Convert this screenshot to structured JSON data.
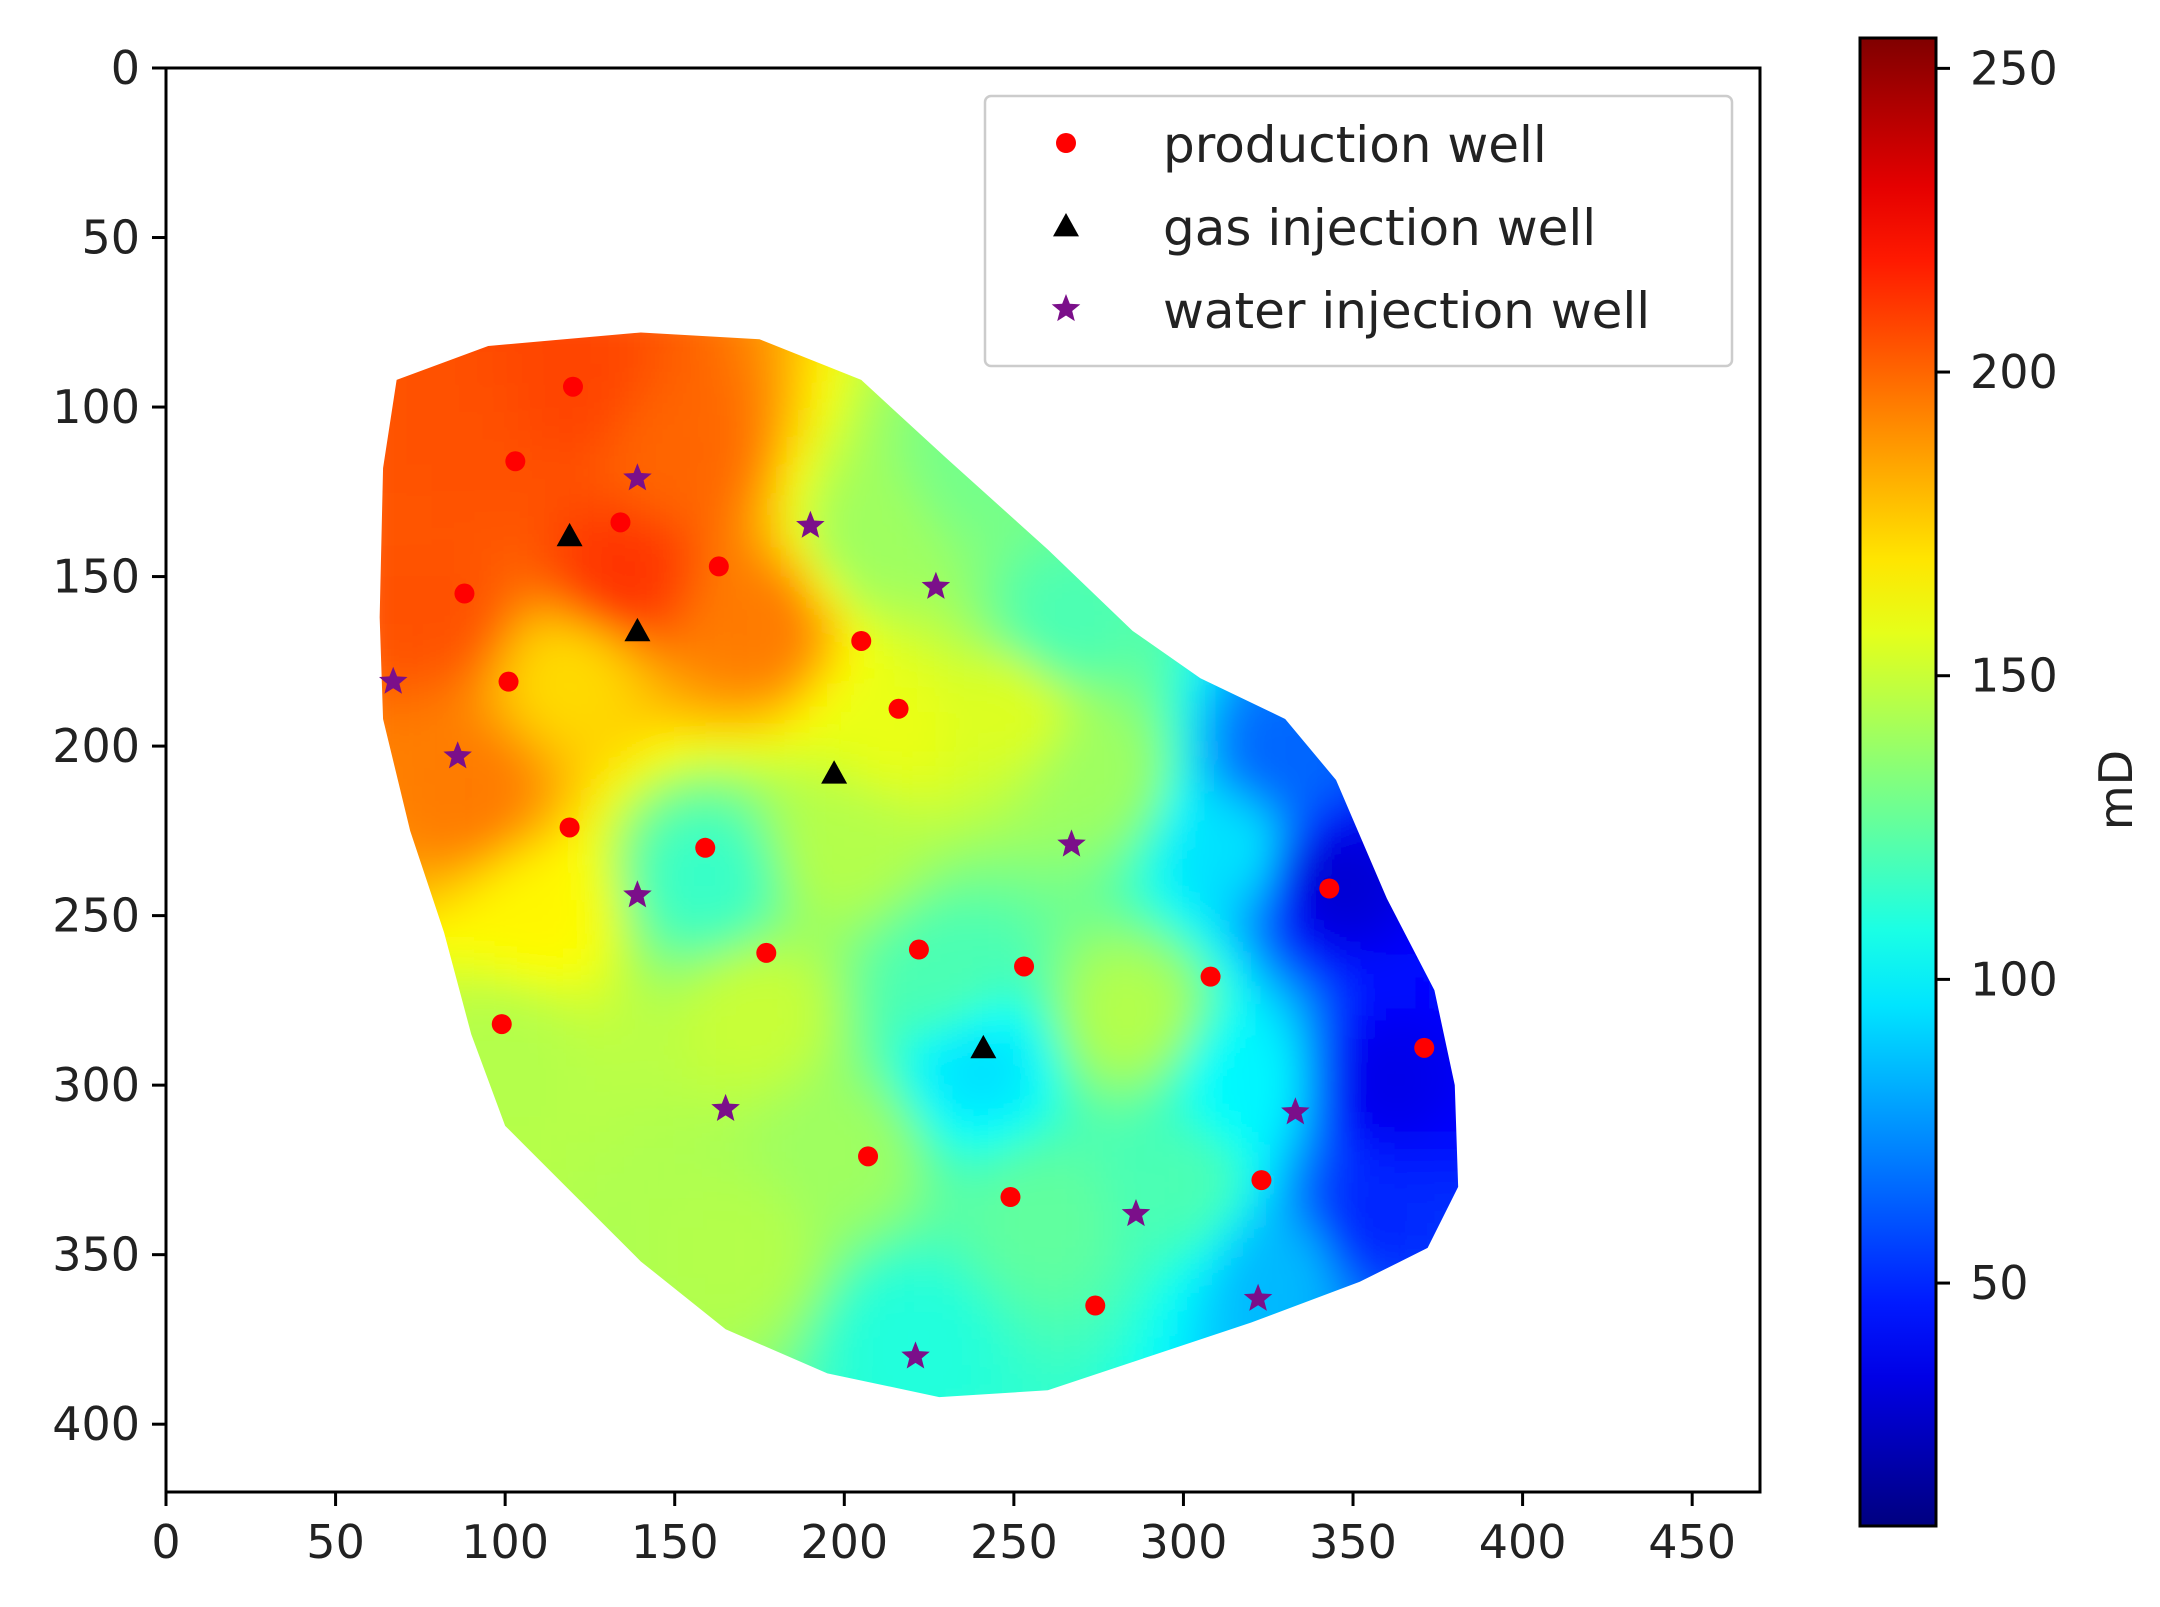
{
  "chart_data": {
    "type": "heatmap",
    "title": "",
    "xlabel": "",
    "ylabel": "",
    "xlim": [
      0,
      470
    ],
    "ylim": [
      420,
      0
    ],
    "xticks": [
      0,
      50,
      100,
      150,
      200,
      250,
      300,
      350,
      400,
      450
    ],
    "yticks": [
      0,
      50,
      100,
      150,
      200,
      250,
      300,
      350,
      400
    ],
    "colorbar": {
      "label": "mD",
      "min": 10,
      "max": 255,
      "ticks": [
        50,
        100,
        150,
        200,
        250
      ],
      "colormap": "jet"
    },
    "reservoir_outline": [
      [
        68,
        92
      ],
      [
        95,
        82
      ],
      [
        140,
        78
      ],
      [
        175,
        80
      ],
      [
        205,
        92
      ],
      [
        230,
        115
      ],
      [
        260,
        142
      ],
      [
        285,
        166
      ],
      [
        305,
        180
      ],
      [
        330,
        192
      ],
      [
        345,
        210
      ],
      [
        360,
        245
      ],
      [
        374,
        272
      ],
      [
        380,
        300
      ],
      [
        381,
        330
      ],
      [
        372,
        348
      ],
      [
        352,
        358
      ],
      [
        320,
        370
      ],
      [
        290,
        380
      ],
      [
        260,
        390
      ],
      [
        228,
        392
      ],
      [
        195,
        385
      ],
      [
        165,
        372
      ],
      [
        140,
        352
      ],
      [
        118,
        330
      ],
      [
        100,
        312
      ],
      [
        90,
        285
      ],
      [
        82,
        255
      ],
      [
        72,
        225
      ],
      [
        64,
        192
      ],
      [
        63,
        162
      ],
      [
        64,
        118
      ]
    ],
    "permeability_samples": [
      {
        "x": 90,
        "y": 110,
        "v": 205
      },
      {
        "x": 120,
        "y": 95,
        "v": 208
      },
      {
        "x": 150,
        "y": 115,
        "v": 200
      },
      {
        "x": 135,
        "y": 150,
        "v": 212
      },
      {
        "x": 175,
        "y": 165,
        "v": 195
      },
      {
        "x": 80,
        "y": 160,
        "v": 205
      },
      {
        "x": 120,
        "y": 180,
        "v": 172
      },
      {
        "x": 90,
        "y": 215,
        "v": 195
      },
      {
        "x": 110,
        "y": 250,
        "v": 165
      },
      {
        "x": 100,
        "y": 290,
        "v": 145
      },
      {
        "x": 160,
        "y": 240,
        "v": 115
      },
      {
        "x": 175,
        "y": 280,
        "v": 150
      },
      {
        "x": 200,
        "y": 230,
        "v": 145
      },
      {
        "x": 215,
        "y": 195,
        "v": 158
      },
      {
        "x": 210,
        "y": 140,
        "v": 140
      },
      {
        "x": 230,
        "y": 270,
        "v": 120
      },
      {
        "x": 240,
        "y": 295,
        "v": 95
      },
      {
        "x": 200,
        "y": 320,
        "v": 140
      },
      {
        "x": 170,
        "y": 350,
        "v": 145
      },
      {
        "x": 220,
        "y": 375,
        "v": 110
      },
      {
        "x": 260,
        "y": 340,
        "v": 125
      },
      {
        "x": 285,
        "y": 280,
        "v": 145
      },
      {
        "x": 275,
        "y": 210,
        "v": 140
      },
      {
        "x": 250,
        "y": 190,
        "v": 155
      },
      {
        "x": 300,
        "y": 330,
        "v": 120
      },
      {
        "x": 320,
        "y": 300,
        "v": 100
      },
      {
        "x": 315,
        "y": 230,
        "v": 95
      },
      {
        "x": 345,
        "y": 240,
        "v": 30
      },
      {
        "x": 360,
        "y": 300,
        "v": 35
      },
      {
        "x": 355,
        "y": 340,
        "v": 50
      },
      {
        "x": 330,
        "y": 355,
        "v": 85
      },
      {
        "x": 240,
        "y": 120,
        "v": 130
      },
      {
        "x": 265,
        "y": 165,
        "v": 120
      },
      {
        "x": 330,
        "y": 205,
        "v": 65
      }
    ],
    "series": [
      {
        "name": "production well",
        "marker": "circle",
        "color": "#ff0000",
        "points": [
          [
            120,
            94
          ],
          [
            103,
            116
          ],
          [
            134,
            134
          ],
          [
            163,
            147
          ],
          [
            88,
            155
          ],
          [
            101,
            181
          ],
          [
            205,
            169
          ],
          [
            216,
            189
          ],
          [
            119,
            224
          ],
          [
            159,
            230
          ],
          [
            343,
            242
          ],
          [
            177,
            261
          ],
          [
            222,
            260
          ],
          [
            253,
            265
          ],
          [
            308,
            268
          ],
          [
            99,
            282
          ],
          [
            371,
            289
          ],
          [
            207,
            321
          ],
          [
            323,
            328
          ],
          [
            249,
            333
          ],
          [
            274,
            365
          ]
        ]
      },
      {
        "name": "gas injection well",
        "marker": "triangle",
        "color": "#000000",
        "points": [
          [
            119,
            138
          ],
          [
            139,
            166
          ],
          [
            197,
            208
          ],
          [
            241,
            289
          ]
        ]
      },
      {
        "name": "water injection well",
        "marker": "star",
        "color": "#7b0f8a",
        "points": [
          [
            139,
            121
          ],
          [
            190,
            135
          ],
          [
            227,
            153
          ],
          [
            67,
            181
          ],
          [
            86,
            203
          ],
          [
            267,
            229
          ],
          [
            139,
            244
          ],
          [
            165,
            307
          ],
          [
            333,
            308
          ],
          [
            286,
            338
          ],
          [
            322,
            363
          ],
          [
            221,
            380
          ]
        ]
      }
    ],
    "legend_position": "upper-right"
  }
}
